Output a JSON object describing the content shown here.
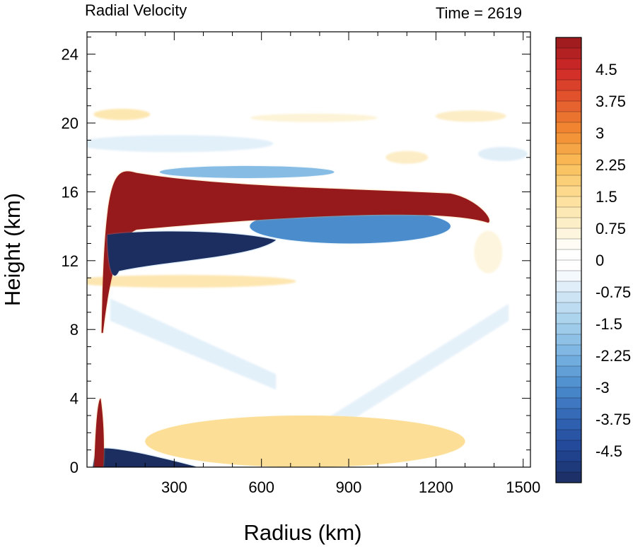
{
  "chart_data": {
    "type": "heatmap",
    "title_left": "Radial Velocity",
    "title_right": "Time = 2619",
    "xlabel": "Radius (km)",
    "ylabel": "Height (km)",
    "xlim": [
      0,
      1525
    ],
    "ylim": [
      0,
      25.3
    ],
    "x_ticks": [
      300,
      600,
      900,
      1200,
      1500
    ],
    "y_ticks": [
      0,
      4,
      8,
      12,
      16,
      20,
      24
    ],
    "colorbar": {
      "range": [
        -5.25,
        5.25
      ],
      "step": 0.25,
      "labels": [
        "4.5",
        "3.75",
        "3",
        "2.25",
        "1.5",
        "0.75",
        "0",
        "-0.75",
        "-1.5",
        "-2.25",
        "-3",
        "-3.75",
        "-4.5"
      ],
      "label_values": [
        4.5,
        3.75,
        3,
        2.25,
        1.5,
        0.75,
        0,
        -0.75,
        -1.5,
        -2.25,
        -3,
        -3.75,
        -4.5
      ]
    },
    "features": [
      {
        "name": "upper outflow",
        "sign": "positive",
        "peak": 5.25,
        "radius_km": [
          50,
          1400
        ],
        "height_km": [
          13.8,
          17.5
        ]
      },
      {
        "name": "inflow below outflow",
        "sign": "negative",
        "peak": -5.25,
        "radius_km": [
          70,
          650
        ],
        "height_km": [
          12.0,
          13.8
        ]
      },
      {
        "name": "boundary-layer inflow",
        "sign": "negative",
        "peak": -5.25,
        "radius_km": [
          20,
          380
        ],
        "height_km": [
          0,
          1.3
        ]
      },
      {
        "name": "eyewall column",
        "sign": "positive",
        "peak": 5.25,
        "radius_km": [
          25,
          60
        ],
        "height_km": [
          0,
          4
        ]
      },
      {
        "name": "mid-level inflow",
        "sign": "negative",
        "peak": -3.0,
        "radius_km": [
          560,
          1250
        ],
        "height_km": [
          13,
          15
        ]
      },
      {
        "name": "outflow-top inflow",
        "sign": "negative",
        "peak": -2.0,
        "radius_km": [
          250,
          850
        ],
        "height_km": [
          16.8,
          17.5
        ]
      },
      {
        "name": "low-level outflow",
        "sign": "positive",
        "peak": 1.5,
        "radius_km": [
          200,
          1300
        ],
        "height_km": [
          0,
          3
        ]
      }
    ]
  }
}
